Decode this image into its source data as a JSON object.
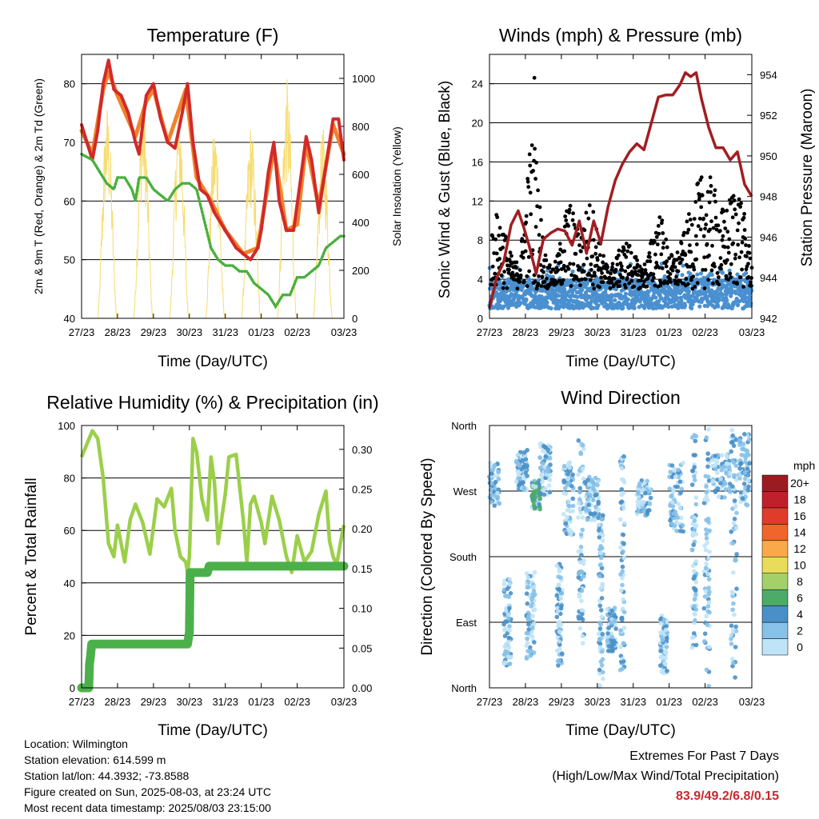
{
  "x_tick_labels": [
    "27/23",
    "28/23",
    "29/23",
    "30/23",
    "31/23",
    "01/23",
    "02/23",
    "03/23"
  ],
  "panels": {
    "temperature": {
      "title": "Temperature (F)",
      "xlabel": "Time (Day/UTC)",
      "ylabel_left": "2m & 9m T (Red, Orange) & 2m Td (Green)",
      "ylabel_right": "Solar Insolation (Yellow)",
      "left_ticks": [
        "40",
        "50",
        "60",
        "70",
        "80"
      ],
      "right_ticks": [
        "0",
        "200",
        "400",
        "600",
        "800",
        "1000"
      ]
    },
    "winds": {
      "title": "Winds (mph) & Pressure (mb)",
      "xlabel": "Time (Day/UTC)",
      "ylabel_left": "Sonic Wind & Gust (Blue, Black)",
      "ylabel_right": "Station Pressure (Maroon)",
      "left_ticks": [
        "0",
        "4",
        "8",
        "12",
        "16",
        "20",
        "24"
      ],
      "right_ticks": [
        "942",
        "944",
        "946",
        "948",
        "950",
        "952",
        "954"
      ]
    },
    "humidity": {
      "title": "Relative Humidity (%) & Precipitation (in)",
      "xlabel": "Time (Day/UTC)",
      "ylabel_left": "Percent & Total Rainfall",
      "left_ticks": [
        "0",
        "20",
        "40",
        "60",
        "80",
        "100"
      ],
      "right_ticks": [
        "0.00",
        "0.05",
        "0.10",
        "0.15",
        "0.20",
        "0.25",
        "0.30"
      ]
    },
    "direction": {
      "title": "Wind Direction",
      "xlabel": "Time (Day/UTC)",
      "ylabel_left": "Direction (Colored By Speed)",
      "left_ticks": [
        "North",
        "East",
        "South",
        "West",
        "North"
      ],
      "colorbar_title": "mph",
      "colorbar_labels": [
        "0",
        "2",
        "4",
        "6",
        "8",
        "10",
        "12",
        "14",
        "16",
        "18",
        "20+"
      ],
      "colorbar_colors": [
        "#bfe3f7",
        "#86c1e8",
        "#4a90c8",
        "#4cab6b",
        "#a4d06a",
        "#e8dc5a",
        "#f9a94a",
        "#f0652a",
        "#e03c2c",
        "#c0202a",
        "#9b1c20"
      ]
    }
  },
  "chart_data": [
    {
      "type": "line",
      "title": "Temperature (F)",
      "x": [
        "27/23",
        "28/23",
        "29/23",
        "30/23",
        "31/23",
        "01/23",
        "02/23",
        "03/23"
      ],
      "ylim": [
        40,
        85
      ],
      "y2lim": [
        0,
        1100
      ],
      "series": [
        {
          "name": "2m T",
          "color": "#d12a2a",
          "axis": "left",
          "points": [
            [
              0,
              73
            ],
            [
              0.15,
              70
            ],
            [
              0.3,
              67
            ],
            [
              0.45,
              72
            ],
            [
              0.6,
              80
            ],
            [
              0.75,
              84
            ],
            [
              0.9,
              79
            ],
            [
              1.1,
              78
            ],
            [
              1.3,
              75
            ],
            [
              1.5,
              70
            ],
            [
              1.6,
              68
            ],
            [
              1.8,
              78
            ],
            [
              2.0,
              80
            ],
            [
              2.2,
              74
            ],
            [
              2.4,
              70
            ],
            [
              2.6,
              69
            ],
            [
              2.8,
              75
            ],
            [
              2.95,
              80
            ],
            [
              3.1,
              70
            ],
            [
              3.3,
              62
            ],
            [
              3.5,
              61
            ],
            [
              3.7,
              58
            ],
            [
              3.9,
              56
            ],
            [
              4.1,
              54
            ],
            [
              4.3,
              52
            ],
            [
              4.5,
              51
            ],
            [
              4.7,
              50
            ],
            [
              4.9,
              52
            ],
            [
              5.0,
              55
            ],
            [
              5.2,
              65
            ],
            [
              5.35,
              70
            ],
            [
              5.5,
              60
            ],
            [
              5.7,
              55
            ],
            [
              5.9,
              55
            ],
            [
              6.1,
              64
            ],
            [
              6.25,
              71
            ],
            [
              6.4,
              67
            ],
            [
              6.6,
              58
            ],
            [
              6.8,
              66
            ],
            [
              7.0,
              74
            ],
            [
              7.15,
              74
            ],
            [
              7.3,
              67
            ]
          ]
        },
        {
          "name": "9m T",
          "color": "#f0822a",
          "axis": "left",
          "points": [
            [
              0,
              72
            ],
            [
              0.3,
              68
            ],
            [
              0.6,
              79
            ],
            [
              0.75,
              82
            ],
            [
              1.0,
              78
            ],
            [
              1.5,
              71
            ],
            [
              1.8,
              77
            ],
            [
              2.0,
              79
            ],
            [
              2.4,
              70
            ],
            [
              2.9,
              79
            ],
            [
              3.2,
              64
            ],
            [
              3.6,
              60
            ],
            [
              4.0,
              55
            ],
            [
              4.5,
              51
            ],
            [
              4.9,
              52
            ],
            [
              5.35,
              69
            ],
            [
              5.7,
              55
            ],
            [
              6.0,
              56
            ],
            [
              6.25,
              70
            ],
            [
              6.6,
              59
            ],
            [
              7.0,
              73
            ],
            [
              7.3,
              68
            ]
          ]
        },
        {
          "name": "2m Td",
          "color": "#4aaf3f",
          "axis": "left",
          "points": [
            [
              0,
              68
            ],
            [
              0.3,
              67
            ],
            [
              0.5,
              65
            ],
            [
              0.7,
              63
            ],
            [
              0.9,
              62
            ],
            [
              1.0,
              64
            ],
            [
              1.2,
              64
            ],
            [
              1.4,
              62
            ],
            [
              1.5,
              60
            ],
            [
              1.6,
              64
            ],
            [
              1.8,
              64
            ],
            [
              2.0,
              62
            ],
            [
              2.2,
              61
            ],
            [
              2.4,
              60
            ],
            [
              2.6,
              62
            ],
            [
              2.8,
              63
            ],
            [
              3.0,
              63
            ],
            [
              3.2,
              62
            ],
            [
              3.4,
              57
            ],
            [
              3.6,
              52
            ],
            [
              3.8,
              50
            ],
            [
              4.0,
              49
            ],
            [
              4.2,
              49
            ],
            [
              4.4,
              48
            ],
            [
              4.6,
              48
            ],
            [
              4.8,
              46
            ],
            [
              5.0,
              45
            ],
            [
              5.2,
              44
            ],
            [
              5.4,
              42
            ],
            [
              5.6,
              44
            ],
            [
              5.8,
              44
            ],
            [
              6.0,
              47
            ],
            [
              6.2,
              47
            ],
            [
              6.4,
              48
            ],
            [
              6.6,
              49
            ],
            [
              6.8,
              52
            ],
            [
              7.0,
              53
            ],
            [
              7.2,
              54
            ],
            [
              7.3,
              54
            ]
          ]
        },
        {
          "name": "Solar Insolation",
          "color": "#f7dc6f",
          "axis": "right",
          "points_per_day_peak": [
            900,
            930,
            900,
            820,
            820,
            1000,
            800,
            700
          ]
        }
      ]
    },
    {
      "type": "line",
      "title": "Winds (mph) & Pressure (mb)",
      "x": [
        "27/23",
        "28/23",
        "29/23",
        "30/23",
        "31/23",
        "01/23",
        "02/23",
        "03/23"
      ],
      "ylim": [
        0,
        27
      ],
      "y2lim": [
        942,
        955
      ],
      "series": [
        {
          "name": "Sonic Wind",
          "color": "#4a90d0",
          "axis": "left",
          "typical": [
            1,
            4
          ],
          "max": 6
        },
        {
          "name": "Gust",
          "color": "#000000",
          "axis": "left",
          "max": 24.6
        },
        {
          "name": "Station Pressure",
          "color": "#a01e22",
          "axis": "right",
          "points": [
            [
              0,
              942.5
            ],
            [
              0.2,
              944
            ],
            [
              0.4,
              944.8
            ],
            [
              0.6,
              946.6
            ],
            [
              0.8,
              947.3
            ],
            [
              0.95,
              946.5
            ],
            [
              1.1,
              945.6
            ],
            [
              1.3,
              944.2
            ],
            [
              1.5,
              945.9
            ],
            [
              1.7,
              946.2
            ],
            [
              1.9,
              946.4
            ],
            [
              2.1,
              946.3
            ],
            [
              2.3,
              945.6
            ],
            [
              2.5,
              946.8
            ],
            [
              2.7,
              945.2
            ],
            [
              2.9,
              946.8
            ],
            [
              3.1,
              945.7
            ],
            [
              3.3,
              947.5
            ],
            [
              3.5,
              948.8
            ],
            [
              3.7,
              949.6
            ],
            [
              3.9,
              950.2
            ],
            [
              4.1,
              950.6
            ],
            [
              4.3,
              950.3
            ],
            [
              4.5,
              951.6
            ],
            [
              4.7,
              952.9
            ],
            [
              4.9,
              953.0
            ],
            [
              5.1,
              953.0
            ],
            [
              5.3,
              953.5
            ],
            [
              5.45,
              954.1
            ],
            [
              5.6,
              953.9
            ],
            [
              5.75,
              954.1
            ],
            [
              5.9,
              952.8
            ],
            [
              6.1,
              951.4
            ],
            [
              6.3,
              950.4
            ],
            [
              6.5,
              950.4
            ],
            [
              6.7,
              949.8
            ],
            [
              6.9,
              950.2
            ],
            [
              7.1,
              948.6
            ],
            [
              7.3,
              948.0
            ]
          ]
        }
      ]
    },
    {
      "type": "line",
      "title": "Relative Humidity (%) & Precipitation (in)",
      "x": [
        "27/23",
        "28/23",
        "29/23",
        "30/23",
        "31/23",
        "01/23",
        "02/23",
        "03/23"
      ],
      "ylim": [
        0,
        100
      ],
      "y2lim": [
        0,
        0.33
      ],
      "series": [
        {
          "name": "Relative Humidity",
          "color": "#9bcf4a",
          "axis": "left",
          "points": [
            [
              0,
              88
            ],
            [
              0.15,
              93
            ],
            [
              0.3,
              98
            ],
            [
              0.45,
              95
            ],
            [
              0.6,
              80
            ],
            [
              0.75,
              55
            ],
            [
              0.9,
              50
            ],
            [
              1.0,
              62
            ],
            [
              1.2,
              48
            ],
            [
              1.35,
              64
            ],
            [
              1.5,
              70
            ],
            [
              1.7,
              63
            ],
            [
              1.9,
              51
            ],
            [
              2.1,
              72
            ],
            [
              2.3,
              69
            ],
            [
              2.5,
              76
            ],
            [
              2.6,
              60
            ],
            [
              2.75,
              50
            ],
            [
              2.9,
              48
            ],
            [
              2.95,
              44
            ],
            [
              3.0,
              50
            ],
            [
              3.1,
              95
            ],
            [
              3.2,
              90
            ],
            [
              3.35,
              72
            ],
            [
              3.5,
              64
            ],
            [
              3.6,
              88
            ],
            [
              3.7,
              78
            ],
            [
              3.8,
              55
            ],
            [
              4.0,
              74
            ],
            [
              4.1,
              88
            ],
            [
              4.3,
              89
            ],
            [
              4.5,
              64
            ],
            [
              4.6,
              48
            ],
            [
              4.7,
              70
            ],
            [
              4.8,
              73
            ],
            [
              5.0,
              63
            ],
            [
              5.1,
              55
            ],
            [
              5.3,
              73
            ],
            [
              5.5,
              64
            ],
            [
              5.7,
              50
            ],
            [
              5.85,
              44
            ],
            [
              6.0,
              58
            ],
            [
              6.2,
              48
            ],
            [
              6.4,
              52
            ],
            [
              6.6,
              66
            ],
            [
              6.8,
              75
            ],
            [
              6.9,
              56
            ],
            [
              7.0,
              50
            ],
            [
              7.1,
              47
            ],
            [
              7.2,
              55
            ],
            [
              7.3,
              62
            ]
          ]
        },
        {
          "name": "Total Rainfall",
          "color": "#4cb04a",
          "axis": "right",
          "points": [
            [
              0,
              0
            ],
            [
              0.2,
              0
            ],
            [
              0.22,
              0.03
            ],
            [
              0.25,
              0.04
            ],
            [
              0.28,
              0.055
            ],
            [
              2.95,
              0.055
            ],
            [
              3.0,
              0.07
            ],
            [
              3.02,
              0.145
            ],
            [
              3.5,
              0.145
            ],
            [
              3.55,
              0.153
            ],
            [
              7.3,
              0.153
            ]
          ]
        }
      ]
    },
    {
      "type": "scatter",
      "title": "Wind Direction",
      "x": [
        "27/23",
        "28/23",
        "29/23",
        "30/23",
        "31/23",
        "01/23",
        "02/23",
        "03/23"
      ],
      "y_categories": [
        "North",
        "East",
        "South",
        "West",
        "North"
      ],
      "color_scale_mph": [
        0,
        20
      ]
    }
  ],
  "footer": {
    "location": "Location: Wilmington",
    "elevation": "Station elevation: 614.599 m",
    "latlon": "Station lat/lon: 44.3932; -73.8588",
    "created": "Figure created on Sun, 2025-08-03, at 23:24 UTC",
    "recent": "Most recent data timestamp: 2025/08/03 23:15:00",
    "extremes_title": "Extremes For Past 7 Days",
    "extremes_sub": "(High/Low/Max Wind/Total Precipitation)",
    "extremes_values": "83.9/49.2/6.8/0.15"
  }
}
